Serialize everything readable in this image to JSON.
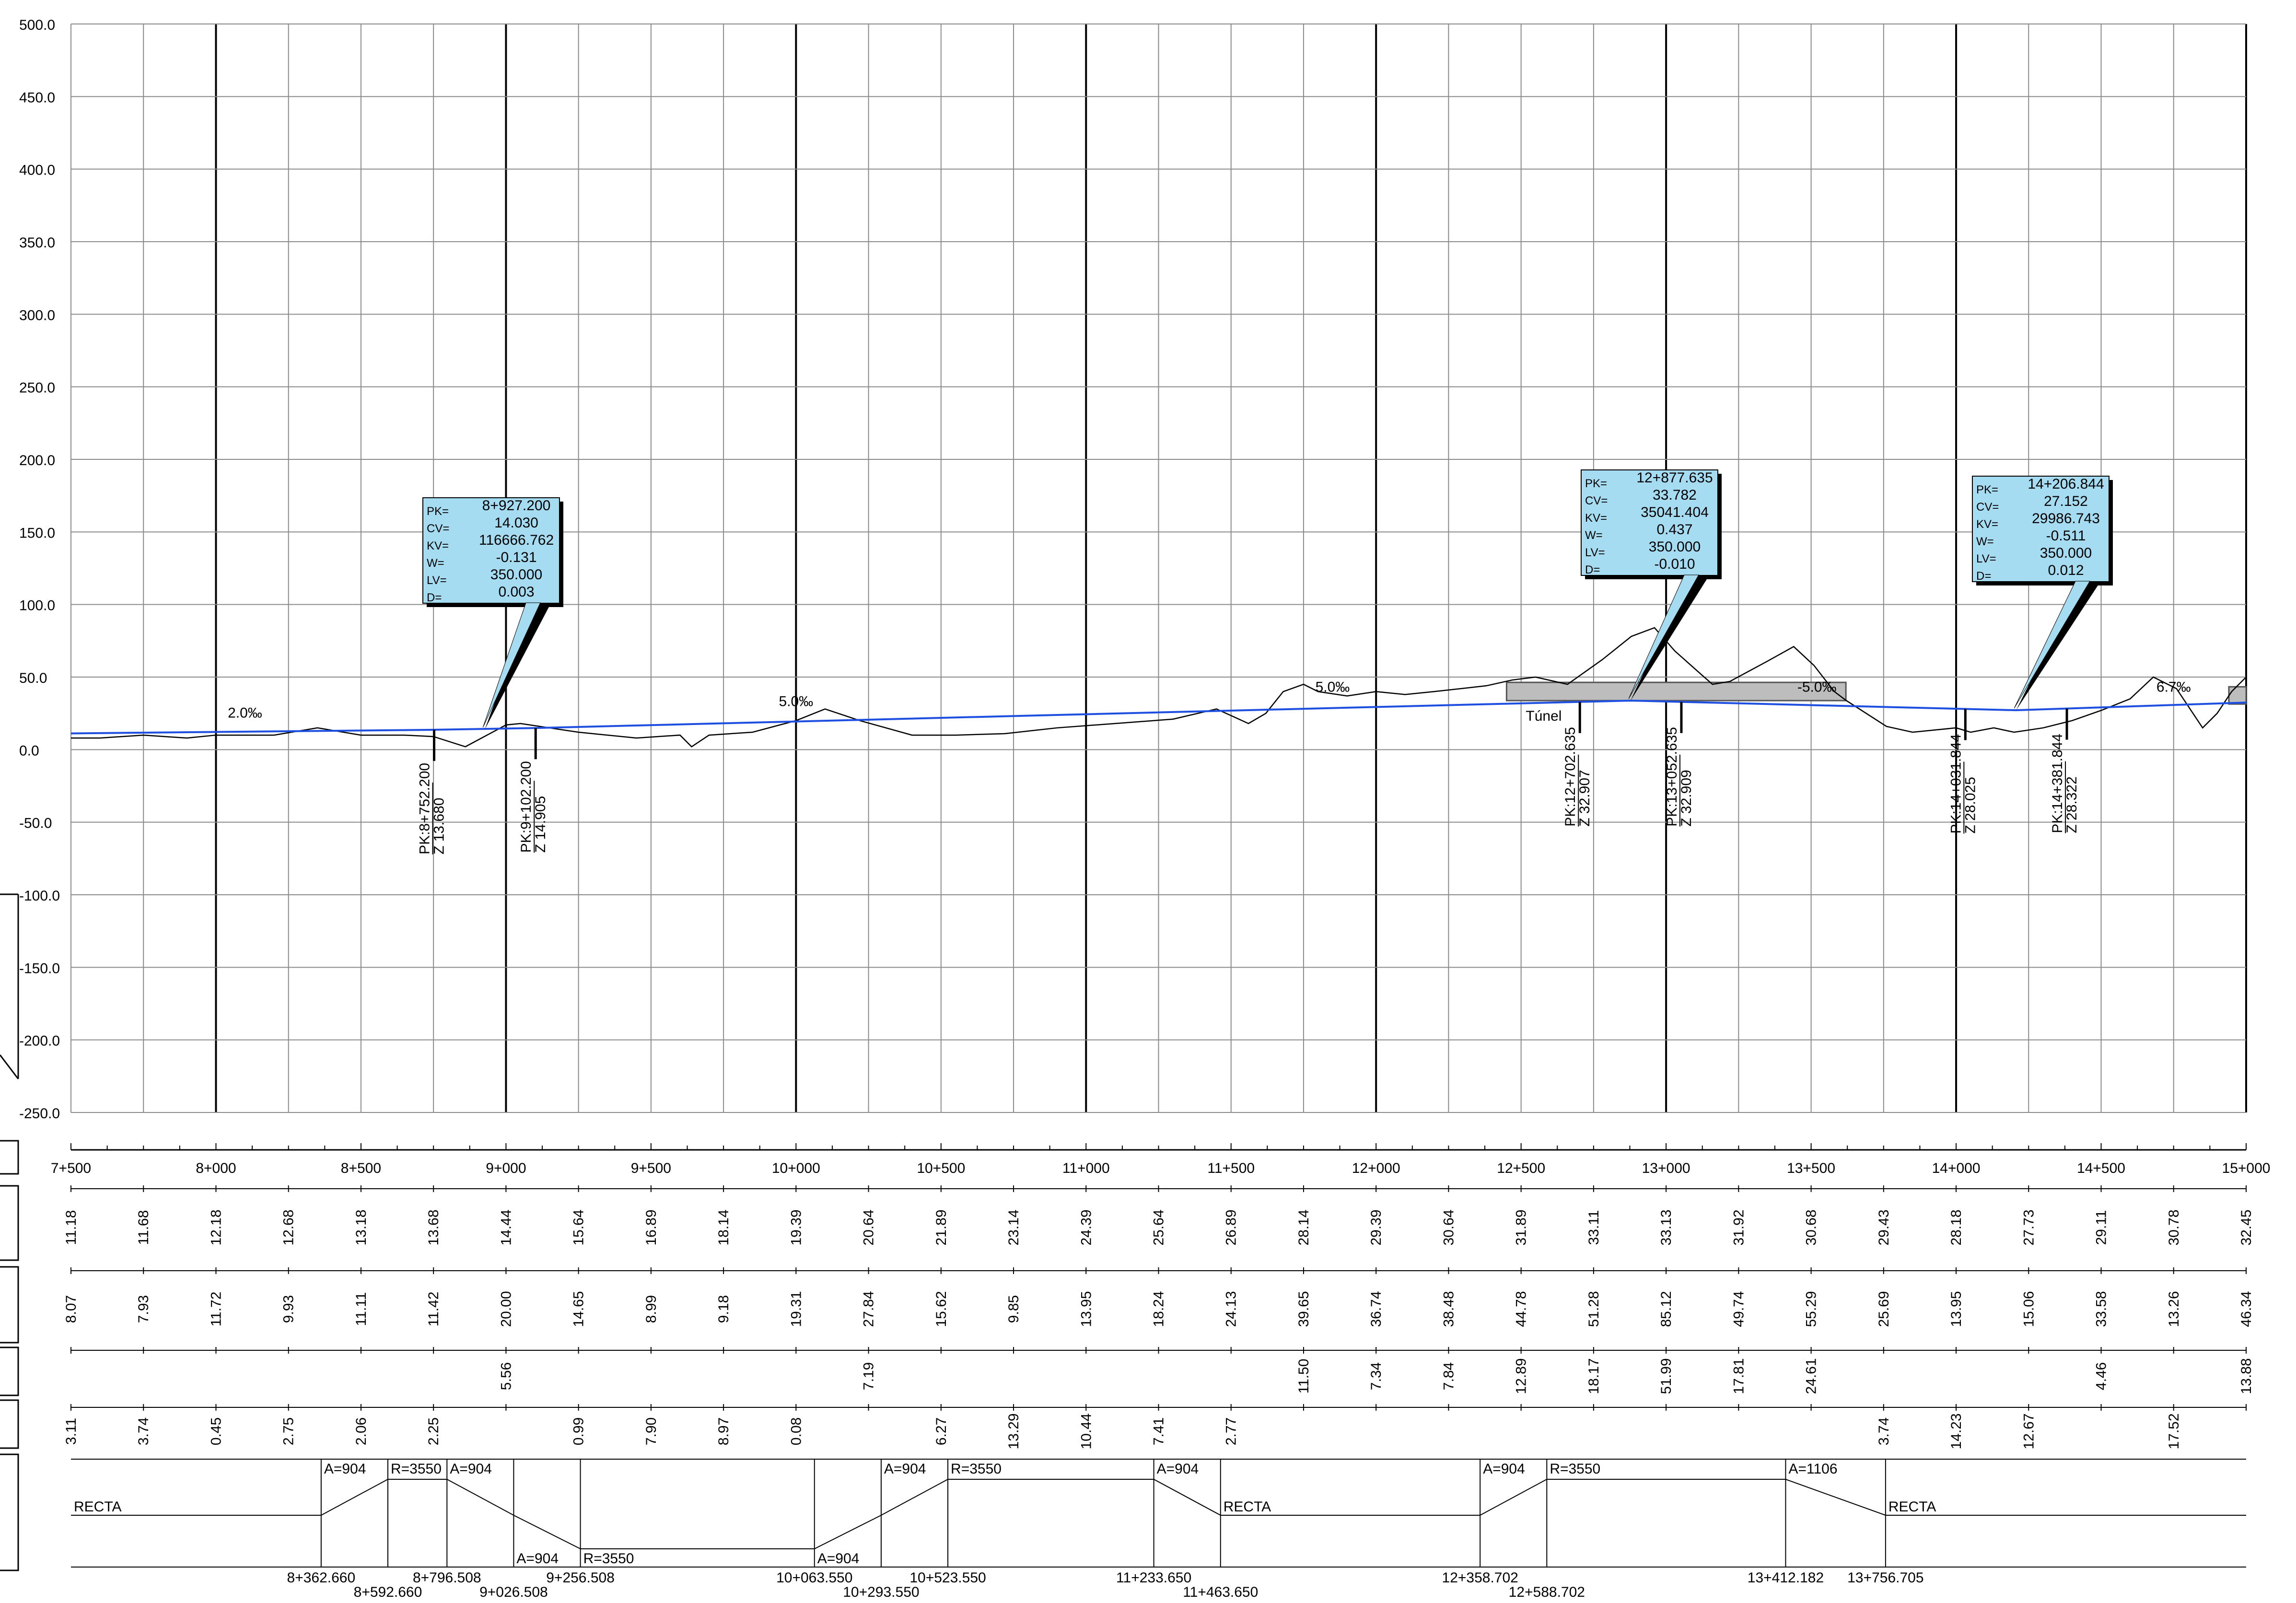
{
  "y_axis": {
    "min": -250,
    "max": 500,
    "step": 50,
    "labels": [
      "500.0",
      "450.0",
      "400.0",
      "350.0",
      "300.0",
      "250.0",
      "200.0",
      "150.0",
      "100.0",
      "50.0",
      "0.0",
      "-50.0",
      "-100.0",
      "-150.0",
      "-200.0",
      "-250.0"
    ]
  },
  "x_axis": {
    "start_m": 7500,
    "end_m": 15000,
    "labels": [
      {
        "m": 7500,
        "t": "7+500"
      },
      {
        "m": 8000,
        "t": "8+000"
      },
      {
        "m": 8500,
        "t": "8+500"
      },
      {
        "m": 9000,
        "t": "9+000"
      },
      {
        "m": 9500,
        "t": "9+500"
      },
      {
        "m": 10000,
        "t": "10+000"
      },
      {
        "m": 10500,
        "t": "10+500"
      },
      {
        "m": 11000,
        "t": "11+000"
      },
      {
        "m": 11500,
        "t": "11+500"
      },
      {
        "m": 12000,
        "t": "12+000"
      },
      {
        "m": 12500,
        "t": "12+500"
      },
      {
        "m": 13000,
        "t": "13+000"
      },
      {
        "m": 13500,
        "t": "13+500"
      },
      {
        "m": 14000,
        "t": "14+000"
      },
      {
        "m": 14500,
        "t": "14+500"
      },
      {
        "m": 15000,
        "t": "15+000"
      }
    ]
  },
  "colors": {
    "grade_line": "#1f4fe0",
    "terrain": "#000000",
    "callout_fill": "#a6dcf2",
    "tunnel_fill": "#bdbdbd"
  },
  "chart_data": {
    "type": "line",
    "x_units": "chainage (m)",
    "ylim": [
      -250,
      500
    ],
    "xlim": [
      7500,
      15000
    ],
    "grid": true,
    "series": [
      {
        "role": "grade_line",
        "x": [
          7500,
          8752.2,
          9102.2,
          12702.635,
          12877.635,
          13052.635,
          14031.844,
          14206.844,
          14381.844,
          15000
        ],
        "y": [
          11.18,
          13.68,
          14.905,
          32.907,
          33.782,
          32.909,
          28.025,
          27.152,
          28.322,
          32.45
        ]
      },
      {
        "role": "terrain",
        "x": [
          7500,
          7600,
          7750,
          7900,
          8000,
          8200,
          8350,
          8500,
          8650,
          8750,
          8860,
          9000,
          9050,
          9250,
          9450,
          9600,
          9640,
          9700,
          9850,
          10000,
          10100,
          10220,
          10400,
          10550,
          10720,
          10900,
          11100,
          11300,
          11450,
          11560,
          11620,
          11680,
          11750,
          11800,
          11900,
          12000,
          12100,
          12200,
          12380,
          12470,
          12550,
          12660,
          12780,
          12880,
          12960,
          13030,
          13120,
          13160,
          13220,
          13350,
          13440,
          13510,
          13580,
          13620,
          13760,
          13850,
          14000,
          14050,
          14130,
          14200,
          14300,
          14400,
          14500,
          14600,
          14680,
          14760,
          14850,
          14900,
          14950,
          15000
        ],
        "y": [
          8,
          8,
          10,
          8,
          10,
          10,
          15,
          10,
          10,
          9,
          2,
          17,
          18,
          12,
          8,
          10,
          2,
          10,
          12,
          20,
          28,
          20,
          10,
          10,
          11,
          15,
          18,
          21,
          28,
          18,
          25,
          40,
          45,
          40,
          37,
          40,
          38,
          40,
          44,
          48,
          50,
          45,
          62,
          78,
          84,
          68,
          52,
          45,
          47,
          61,
          71,
          58,
          40,
          34,
          16,
          12,
          15,
          12,
          15,
          12,
          15,
          20,
          27,
          35,
          50,
          42,
          15,
          25,
          40,
          50
        ]
      }
    ],
    "vertical_curves": [
      {
        "pk": "8+927.200",
        "cv": "14.030",
        "kv": "116666.762",
        "w": "-0.131",
        "lv": "350.000",
        "d": "0.003",
        "pk_m": 8927.2,
        "cv_m": 14.03
      },
      {
        "pk": "12+877.635",
        "cv": "33.782",
        "kv": "35041.404",
        "w": "0.437",
        "lv": "350.000",
        "d": "-0.010",
        "pk_m": 12877.635,
        "cv_m": 33.782
      },
      {
        "pk": "14+206.844",
        "cv": "27.152",
        "kv": "29986.743",
        "w": "-0.511",
        "lv": "350.000",
        "d": "0.012",
        "pk_m": 14206.844,
        "cv_m": 27.152
      }
    ],
    "tangent_points": [
      {
        "pk": "PK:8+752.200",
        "z": "Z 13.680",
        "m": 8752.2,
        "zv": 13.68
      },
      {
        "pk": "PK:9+102.200",
        "z": "Z 14.905",
        "m": 9102.2,
        "zv": 14.905
      },
      {
        "pk": "PK:12+702.635",
        "z": "Z 32.907",
        "m": 12702.635,
        "zv": 32.907
      },
      {
        "pk": "PK:13+052.635",
        "z": "Z 32.909",
        "m": 13052.635,
        "zv": 32.909
      },
      {
        "pk": "PK:14+031.844",
        "z": "Z 28.025",
        "m": 14031.844,
        "zv": 28.025
      },
      {
        "pk": "PK:14+381.844",
        "z": "Z 28.322",
        "m": 14381.844,
        "zv": 28.322
      }
    ],
    "slope_labels": [
      {
        "t": "2.0‰",
        "m": 8100,
        "y": 22
      },
      {
        "t": "5.0‰",
        "m": 10000,
        "y": 30
      },
      {
        "t": "5.0‰",
        "m": 11850,
        "y": 40
      },
      {
        "t": "-5.0‰",
        "m": 13520,
        "y": 40
      },
      {
        "t": "6.7‰",
        "m": 14750,
        "y": 40
      }
    ],
    "tunnel": {
      "label": "Túnel",
      "start_m": 12450,
      "end_m": 13620
    }
  },
  "bands": {
    "row1": [
      "11.18",
      "11.68",
      "12.18",
      "12.68",
      "13.18",
      "13.68",
      "14.44",
      "15.64",
      "16.89",
      "18.14",
      "19.39",
      "20.64",
      "21.89",
      "23.14",
      "24.39",
      "25.64",
      "26.89",
      "28.14",
      "29.39",
      "30.64",
      "31.89",
      "33.11",
      "33.13",
      "31.92",
      "30.68",
      "29.43",
      "28.18",
      "27.73",
      "29.11",
      "30.78",
      "32.45"
    ],
    "row2": [
      "8.07",
      "7.93",
      "11.72",
      "9.93",
      "11.11",
      "11.42",
      "20.00",
      "14.65",
      "8.99",
      "9.18",
      "19.31",
      "27.84",
      "15.62",
      "9.85",
      "13.95",
      "18.24",
      "24.13",
      "39.65",
      "36.74",
      "38.48",
      "44.78",
      "51.28",
      "85.12",
      "49.74",
      "55.29",
      "25.69",
      "13.95",
      "15.06",
      "33.58",
      "13.26",
      "46.34"
    ],
    "row3": [
      "",
      "",
      "",
      "",
      "",
      "",
      "5.56",
      "",
      "",
      "",
      "",
      "7.19",
      "",
      "",
      "",
      "",
      "",
      "11.50",
      "7.34",
      "7.84",
      "12.89",
      "18.17",
      "51.99",
      "17.81",
      "24.61",
      "",
      "",
      "",
      "4.46",
      "",
      "13.88"
    ],
    "row4": [
      "3.11",
      "3.74",
      "0.45",
      "2.75",
      "2.06",
      "2.25",
      "",
      "0.99",
      "7.90",
      "8.97",
      "0.08",
      "",
      "6.27",
      "13.29",
      "10.44",
      "7.41",
      "2.77",
      "",
      "",
      "",
      "",
      "",
      "",
      "",
      "",
      "3.74",
      "14.23",
      "12.67",
      "",
      "17.52",
      ""
    ]
  },
  "alignment": {
    "straight_label": "RECTA",
    "segment_labels": [
      {
        "t": "A=904",
        "m": 8362.66,
        "lvl": "up"
      },
      {
        "t": "R=3550",
        "m": 8592.66,
        "lvl": "up"
      },
      {
        "t": "A=904",
        "m": 8796.508,
        "lvl": "up"
      },
      {
        "t": "A=904",
        "m": 9026.508,
        "lvl": "down"
      },
      {
        "t": "R=3550",
        "m": 9256.508,
        "lvl": "down"
      },
      {
        "t": "A=904",
        "m": 10063.55,
        "lvl": "down"
      },
      {
        "t": "A=904",
        "m": 10293.55,
        "lvl": "up"
      },
      {
        "t": "R=3550",
        "m": 10523.55,
        "lvl": "up"
      },
      {
        "t": "A=904",
        "m": 11233.65,
        "lvl": "up"
      },
      {
        "t": "A=904",
        "m": 12358.702,
        "lvl": "up"
      },
      {
        "t": "R=3550",
        "m": 12588.702,
        "lvl": "up"
      },
      {
        "t": "A=1106",
        "m": 13412.182,
        "lvl": "up"
      }
    ],
    "recta_positions": [
      7500,
      11463.65,
      13756.705
    ],
    "breakpoints": [
      {
        "t": "8+362.660",
        "m": 8362.66,
        "row": 1
      },
      {
        "t": "8+592.660",
        "m": 8592.66,
        "row": 2
      },
      {
        "t": "8+796.508",
        "m": 8796.508,
        "row": 1
      },
      {
        "t": "9+026.508",
        "m": 9026.508,
        "row": 2
      },
      {
        "t": "9+256.508",
        "m": 9256.508,
        "row": 1
      },
      {
        "t": "10+063.550",
        "m": 10063.55,
        "row": 1
      },
      {
        "t": "10+293.550",
        "m": 10293.55,
        "row": 2
      },
      {
        "t": "10+523.550",
        "m": 10523.55,
        "row": 1
      },
      {
        "t": "11+233.650",
        "m": 11233.65,
        "row": 1
      },
      {
        "t": "11+463.650",
        "m": 11463.65,
        "row": 2
      },
      {
        "t": "12+358.702",
        "m": 12358.702,
        "row": 1
      },
      {
        "t": "12+588.702",
        "m": 12588.702,
        "row": 2
      },
      {
        "t": "13+412.182",
        "m": 13412.182,
        "row": 1
      },
      {
        "t": "13+756.705",
        "m": 13756.705,
        "row": 1
      }
    ]
  }
}
